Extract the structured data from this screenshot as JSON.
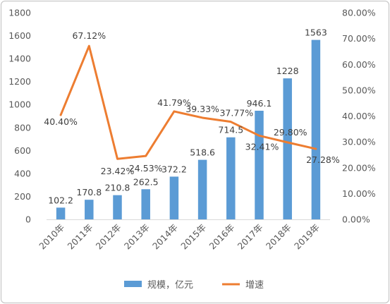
{
  "chart_data": {
    "type": "bar+line",
    "categories": [
      "2010年",
      "2011年",
      "2012年",
      "2013年",
      "2014年",
      "2015年",
      "2016年",
      "2017年",
      "2018年",
      "2019年"
    ],
    "series": [
      {
        "name": "规模，亿元",
        "type": "bar",
        "axis": "left",
        "color": "#5b9bd5",
        "values": [
          102.2,
          170.8,
          210.8,
          262.5,
          372.2,
          518.6,
          714.5,
          946.1,
          1228,
          1563
        ],
        "labels": [
          "102.2",
          "170.8",
          "210.8",
          "262.5",
          "372.2",
          "518.6",
          "714.5",
          "946.1",
          "1228",
          "1563"
        ]
      },
      {
        "name": "增速",
        "type": "line",
        "axis": "right",
        "color": "#ed7d31",
        "values": [
          40.4,
          67.12,
          23.42,
          24.53,
          41.79,
          39.33,
          37.77,
          32.41,
          29.8,
          27.28
        ],
        "labels": [
          "40.40%",
          "67.12%",
          "23.42%",
          "24.53%",
          "41.79%",
          "39.33%",
          "37.77%",
          "32.41%",
          "29.80%",
          "27.28%"
        ]
      }
    ],
    "y_left": {
      "min": 0,
      "max": 1800,
      "step": 200,
      "ticks": [
        "0",
        "200",
        "400",
        "600",
        "800",
        "1000",
        "1200",
        "1400",
        "1600",
        "1800"
      ]
    },
    "y_right": {
      "min": 0,
      "max": 80,
      "step": 10,
      "ticks": [
        "0.00%",
        "10.00%",
        "20.00%",
        "30.00%",
        "40.00%",
        "50.00%",
        "60.00%",
        "70.00%",
        "80.00%"
      ]
    },
    "grid": false,
    "legend_position": "bottom"
  }
}
